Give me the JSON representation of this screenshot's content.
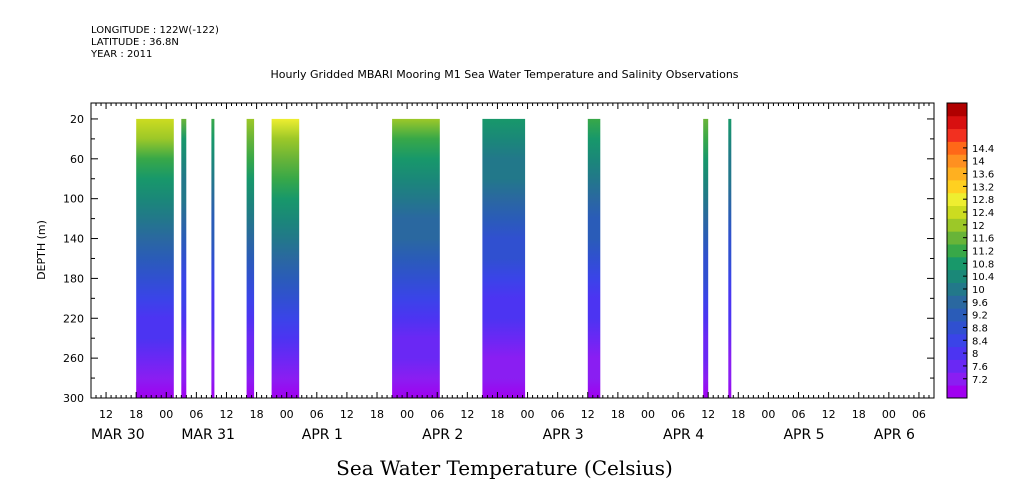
{
  "header": {
    "longitude": "LONGITUDE : 122W(-122)",
    "latitude": "LATITUDE : 36.8N",
    "year": "YEAR : 2011"
  },
  "chart_data": {
    "type": "heatmap",
    "title": "Hourly Gridded MBARI Mooring M1 Sea Water Temperature and Salinity Observations",
    "xlabel": "Sea Water Temperature (Celsius)",
    "ylabel": "DEPTH (m)",
    "x_range_hours_from_mar30_00": [
      9,
      177
    ],
    "ylim": [
      300,
      4
    ],
    "y_ticks": [
      20,
      60,
      100,
      140,
      180,
      220,
      260,
      300
    ],
    "x_hour_ticks": [
      {
        "h": 12,
        "label": "12"
      },
      {
        "h": 18,
        "label": "18"
      },
      {
        "h": 24,
        "label": "00"
      },
      {
        "h": 30,
        "label": "06"
      },
      {
        "h": 36,
        "label": "12"
      },
      {
        "h": 42,
        "label": "18"
      },
      {
        "h": 48,
        "label": "00"
      },
      {
        "h": 54,
        "label": "06"
      },
      {
        "h": 60,
        "label": "12"
      },
      {
        "h": 66,
        "label": "18"
      },
      {
        "h": 72,
        "label": "00"
      },
      {
        "h": 78,
        "label": "06"
      },
      {
        "h": 84,
        "label": "12"
      },
      {
        "h": 90,
        "label": "18"
      },
      {
        "h": 96,
        "label": "00"
      },
      {
        "h": 102,
        "label": "06"
      },
      {
        "h": 108,
        "label": "12"
      },
      {
        "h": 114,
        "label": "18"
      },
      {
        "h": 120,
        "label": "00"
      },
      {
        "h": 126,
        "label": "06"
      },
      {
        "h": 132,
        "label": "12"
      },
      {
        "h": 138,
        "label": "18"
      },
      {
        "h": 144,
        "label": "00"
      },
      {
        "h": 150,
        "label": "06"
      },
      {
        "h": 156,
        "label": "12"
      },
      {
        "h": 162,
        "label": "18"
      },
      {
        "h": 168,
        "label": "00"
      },
      {
        "h": 174,
        "label": "06"
      }
    ],
    "x_day_labels": [
      {
        "h": 9,
        "label": "MAR 30"
      },
      {
        "h": 27,
        "label": "MAR 31"
      },
      {
        "h": 51,
        "label": "APR  1"
      },
      {
        "h": 75,
        "label": "APR  2"
      },
      {
        "h": 99,
        "label": "APR  3"
      },
      {
        "h": 123,
        "label": "APR  4"
      },
      {
        "h": 147,
        "label": "APR  5"
      },
      {
        "h": 165,
        "label": "APR  6"
      }
    ],
    "colorbar": {
      "levels": [
        7.2,
        7.6,
        8,
        8.4,
        8.8,
        9.2,
        9.6,
        10,
        10.4,
        10.8,
        11.2,
        11.6,
        12,
        12.4,
        12.8,
        13.2,
        13.6,
        14,
        14.4
      ],
      "labels": [
        "7.2",
        "7.6",
        "8",
        "8.4",
        "8.8",
        "9.2",
        "9.6",
        "10",
        "10.4",
        "10.8",
        "11.2",
        "11.6",
        "12",
        "12.4",
        "12.8",
        "13.2",
        "13.6",
        "14",
        "14.4"
      ],
      "colors": [
        "#a000f0",
        "#8a1ef2",
        "#6a28f4",
        "#4c34f2",
        "#3a44e8",
        "#3050d0",
        "#2a5cb8",
        "#2a68a0",
        "#22788a",
        "#1a8878",
        "#18986a",
        "#38a848",
        "#68b438",
        "#9cc828",
        "#ccdc20",
        "#eeee30",
        "#ffd020",
        "#ffb020",
        "#ff9020",
        "#ff6818",
        "#f23020",
        "#d81010",
        "#b00000"
      ]
    },
    "segments": [
      {
        "start": 18.0,
        "end": 25.5,
        "top_temp": 11.8
      },
      {
        "start": 27.0,
        "end": 28.0,
        "top_temp": 11.0
      },
      {
        "start": 33.0,
        "end": 33.5,
        "top_temp": 10.8
      },
      {
        "start": 40.0,
        "end": 41.5,
        "top_temp": 11.6
      },
      {
        "start": 45.0,
        "end": 50.5,
        "top_temp": 12.0
      },
      {
        "start": 69.0,
        "end": 78.5,
        "top_temp": 11.4
      },
      {
        "start": 87.0,
        "end": 95.5,
        "top_temp": 10.6
      },
      {
        "start": 108.0,
        "end": 110.5,
        "top_temp": 10.8
      },
      {
        "start": 131.0,
        "end": 132.0,
        "top_temp": 11.2
      },
      {
        "start": 136.0,
        "end": 136.5,
        "top_temp": 10.6
      }
    ]
  }
}
